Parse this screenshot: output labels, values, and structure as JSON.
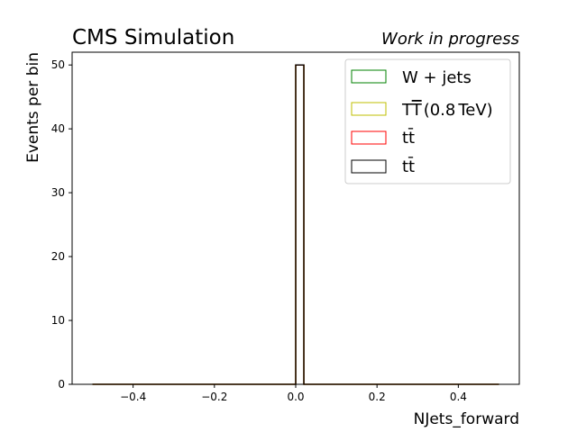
{
  "chart_data": {
    "type": "histogram",
    "title_left": "CMS Simulation",
    "title_right": "Work in progress",
    "xlabel": "NJets_forward",
    "ylabel": "Events per bin",
    "xlim": [
      -0.55,
      0.55
    ],
    "ylim": [
      0,
      52
    ],
    "xticks": [
      -0.4,
      -0.2,
      0.0,
      0.2,
      0.4
    ],
    "xtick_labels": [
      "−0.4",
      "−0.2",
      "0.0",
      "0.2",
      "0.4"
    ],
    "yticks": [
      0,
      10,
      20,
      30,
      40,
      50
    ],
    "ytick_labels": [
      "0",
      "10",
      "20",
      "30",
      "40",
      "50"
    ],
    "legend_position": "upper-right",
    "grid": false,
    "bin_range": [
      -0.5,
      0.5
    ],
    "bin_width": 0.02,
    "series": [
      {
        "name": "W + jets",
        "legend_label": "W + jets",
        "color": "#008000",
        "bins": [
          {
            "x0": 0.0,
            "x1": 0.02,
            "value": 50
          }
        ]
      },
      {
        "name": "T̅T̅ (0.8 TeV)",
        "legend_label": "TT̅(0.8 TeV)",
        "color": "#bfbf00",
        "bins": [
          {
            "x0": 0.0,
            "x1": 0.02,
            "value": 50
          }
        ]
      },
      {
        "name": "tt̄ (red)",
        "legend_label": "tt̄",
        "color": "#ff0000",
        "bins": [
          {
            "x0": 0.0,
            "x1": 0.02,
            "value": 50
          }
        ]
      },
      {
        "name": "tt̄ (black)",
        "legend_label": "tt̄",
        "color": "#000000",
        "bins": [
          {
            "x0": 0.0,
            "x1": 0.02,
            "value": 50
          }
        ]
      }
    ]
  }
}
